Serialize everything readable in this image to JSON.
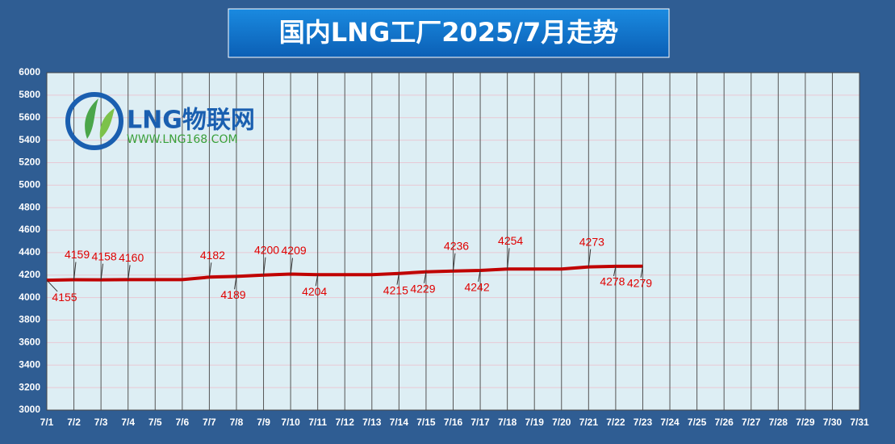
{
  "chart_data": {
    "type": "line",
    "title": "国内LNG工厂2025/7月走势",
    "categories": [
      "7/1",
      "7/2",
      "7/3",
      "7/4",
      "7/5",
      "7/6",
      "7/7",
      "7/8",
      "7/9",
      "7/10",
      "7/11",
      "7/12",
      "7/13",
      "7/14",
      "7/15",
      "7/16",
      "7/17",
      "7/18",
      "7/19",
      "7/20",
      "7/21",
      "7/22",
      "7/23",
      "7/24",
      "7/25",
      "7/26",
      "7/27",
      "7/28",
      "7/29",
      "7/30",
      "7/31"
    ],
    "series": [
      {
        "color": "#c00000",
        "values": [
          4155,
          4159,
          4158,
          4160,
          4160,
          4160,
          4182,
          4189,
          4200,
          4209,
          4204,
          4204,
          4204,
          4215,
          4229,
          4236,
          4242,
          4254,
          4254,
          4254,
          4273,
          4278,
          4279,
          null,
          null,
          null,
          null,
          null,
          null,
          null,
          null
        ],
        "value_labels": [
          "4155",
          "4159",
          "4158",
          "4160",
          null,
          null,
          "4182",
          "4189",
          "4200",
          "4209",
          "4204",
          null,
          null,
          "4215",
          "4229",
          "4236",
          "4242",
          "4254",
          null,
          null,
          "4273",
          "4278",
          "4279",
          null,
          null,
          null,
          null,
          null,
          null,
          null,
          null
        ]
      }
    ],
    "ylim": [
      3000,
      6000
    ],
    "yticks": [
      3000,
      3200,
      3400,
      3600,
      3800,
      4000,
      4200,
      4400,
      4600,
      4800,
      5000,
      5200,
      5400,
      5600,
      5800,
      6000
    ],
    "grid": true
  },
  "logo": {
    "name": "LNG物联网",
    "url": "WWW.LNG168.COM"
  }
}
